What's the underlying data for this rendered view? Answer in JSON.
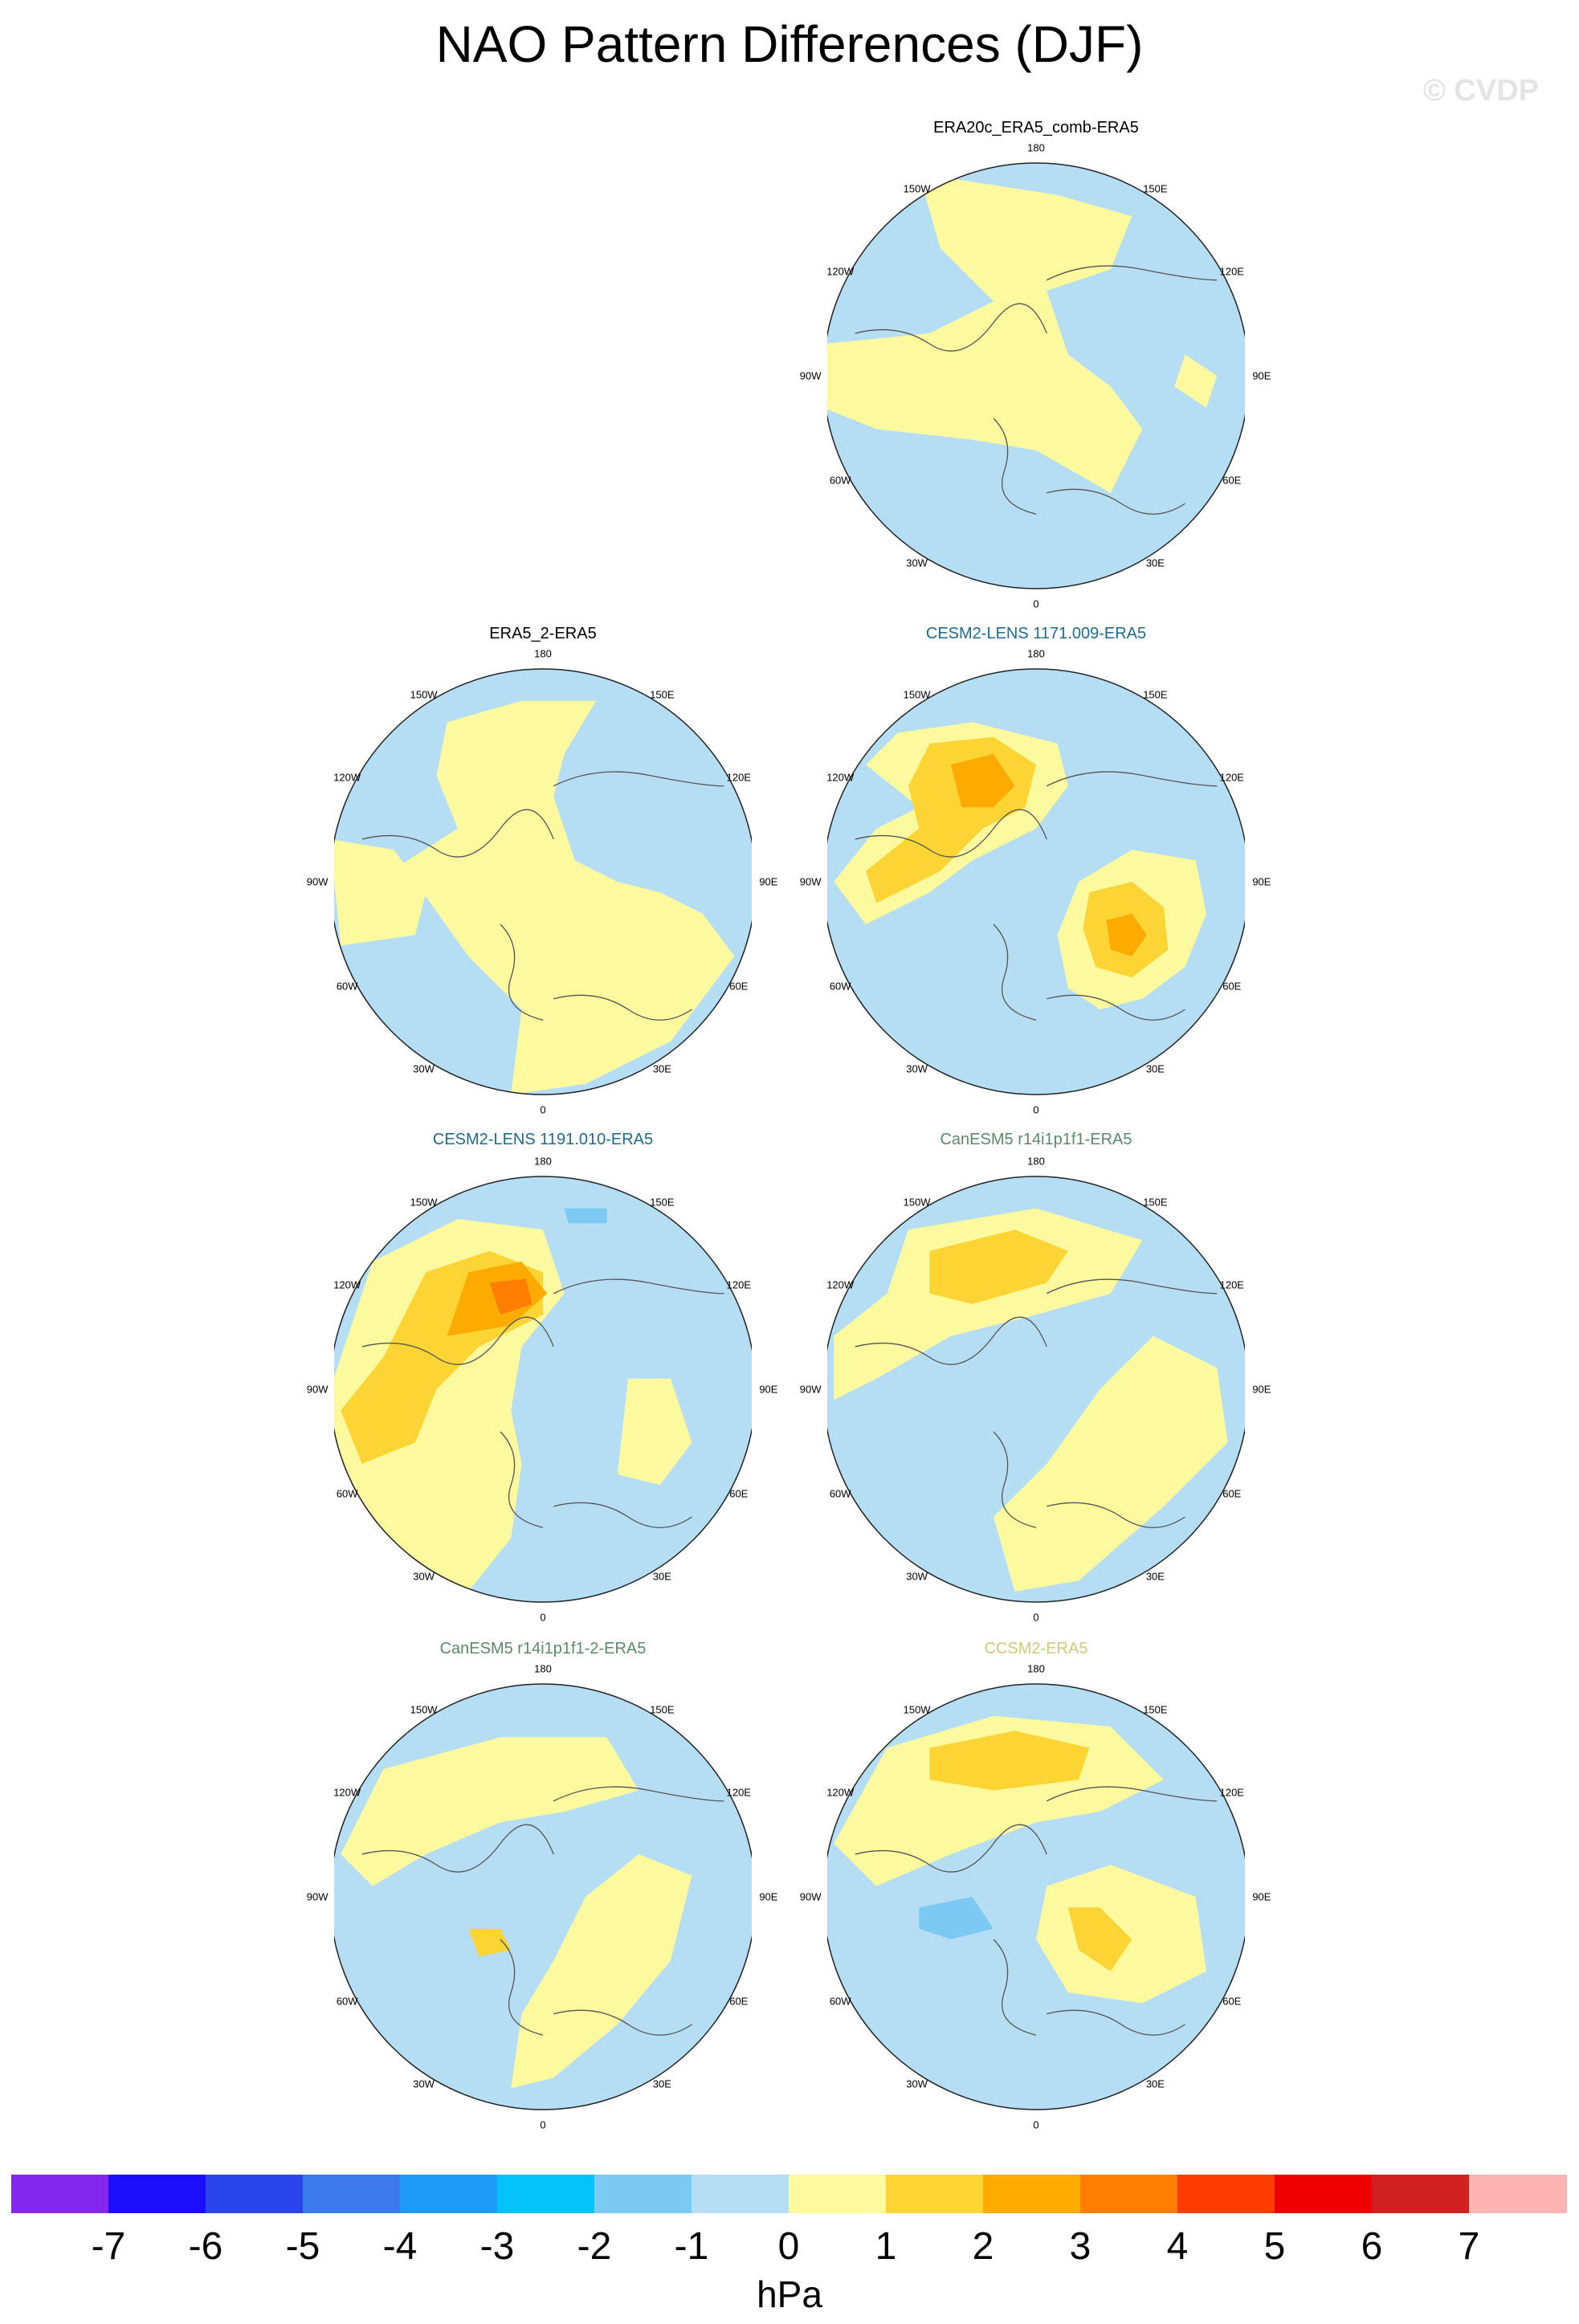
{
  "title": "NAO Pattern Differences (DJF)",
  "watermark": "© CVDP",
  "lon_labels": {
    "top": "180",
    "bottom": "0",
    "ul": "150W",
    "ur": "150E",
    "l1": "120W",
    "r1": "120E",
    "l2": "90W",
    "r2": "90E",
    "l3": "60W",
    "r3": "60E",
    "bl": "30W",
    "br": "30E"
  },
  "panels": [
    {
      "title": "ERA20c_ERA5_comb-ERA5",
      "title_color": "#000000"
    },
    {
      "title": "ERA5_2-ERA5",
      "title_color": "#000000"
    },
    {
      "title": "CESM2-LENS 1171.009-ERA5",
      "title_color": "#1f6b8e"
    },
    {
      "title": "CESM2-LENS 1191.010-ERA5",
      "title_color": "#1f6b8e"
    },
    {
      "title": "CanESM5 r14i1p1f1-ERA5",
      "title_color": "#5a8a6a"
    },
    {
      "title": "CanESM5 r14i1p1f1-2-ERA5",
      "title_color": "#5a8a6a"
    },
    {
      "title": "CCSM2-ERA5",
      "title_color": "#d4c87a"
    }
  ],
  "colorbar": {
    "colors": [
      "#8427ee",
      "#1b0ffb",
      "#2a46eb",
      "#3a7aea",
      "#1e9af8",
      "#06c2fa",
      "#7ccaf3",
      "#b5def4",
      "#fdf99f",
      "#fcd434",
      "#fdab00",
      "#fd7e00",
      "#ff3c02",
      "#ee0000",
      "#d0201f",
      "#ffb4b4"
    ],
    "ticks": [
      "-7",
      "-6",
      "-5",
      "-4",
      "-3",
      "-2",
      "-1",
      "0",
      "1",
      "2",
      "3",
      "4",
      "5",
      "6",
      "7"
    ],
    "unit": "hPa"
  }
}
